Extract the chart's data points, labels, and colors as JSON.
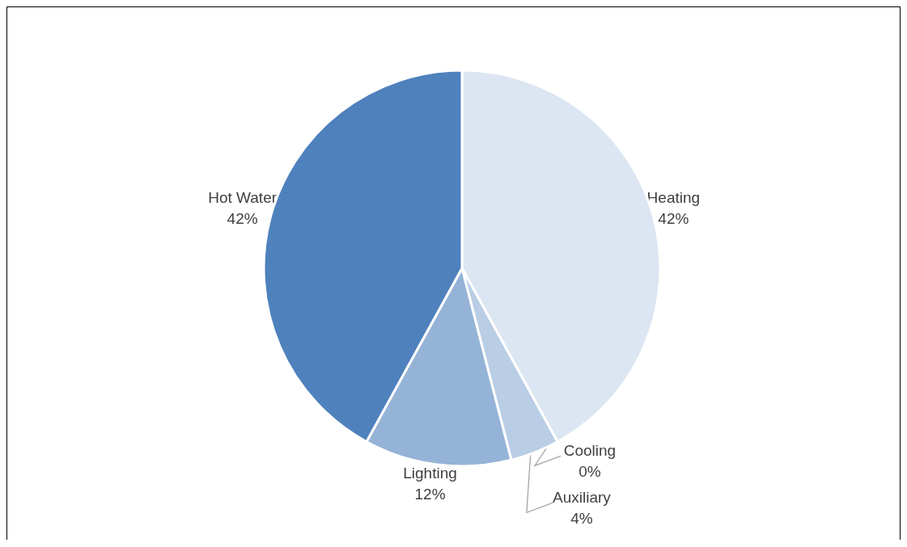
{
  "chart_data": {
    "type": "pie",
    "categories": [
      "Heating",
      "Cooling",
      "Auxiliary",
      "Lighting",
      "Hot Water"
    ],
    "values": [
      42,
      0,
      4,
      12,
      42
    ],
    "value_labels": [
      "42%",
      "0%",
      "4%",
      "12%",
      "42%"
    ],
    "colors": [
      "#dce6f2",
      "#c6d9f1",
      "#b9cde5",
      "#95b3d7",
      "#4f81bd"
    ]
  }
}
